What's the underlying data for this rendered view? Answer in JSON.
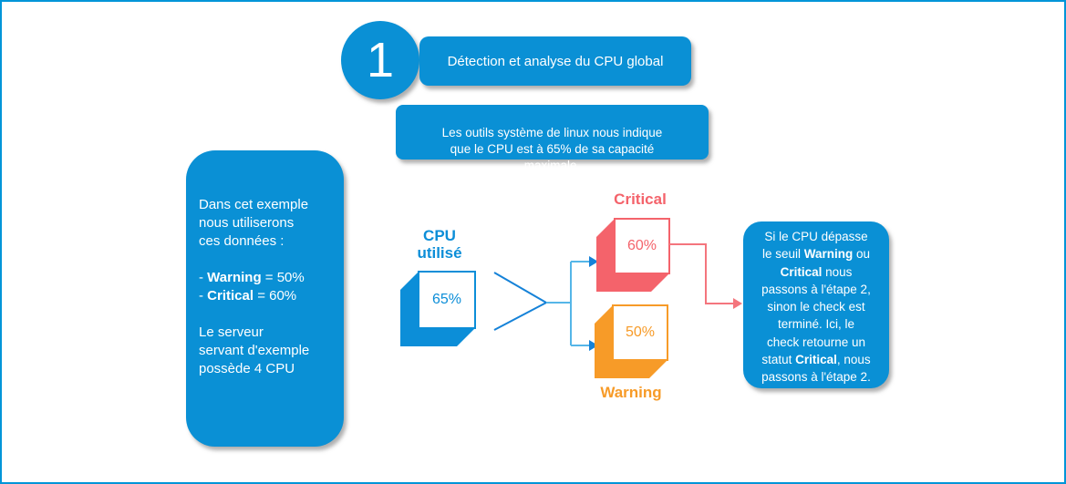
{
  "canvas": {
    "background": "#ffffff",
    "border_color": "#0095d8"
  },
  "colors": {
    "primary_blue": "#0a90d5",
    "diagram_blue": "#0c8ed8",
    "arrow_dark_blue": "#1582d8",
    "arrow_light_blue": "#55b6e8",
    "critical_red": "#f4636b",
    "critical_arrow_red": "#f4757d",
    "warning_orange": "#f79b28",
    "text_white": "#ffffff"
  },
  "step": {
    "number": "1",
    "title": "Détection et analyse du CPU global"
  },
  "subtitle": "Les outils système de linux nous indique\nque le CPU est à 65% de sa capacité\nmaximale.",
  "left_note": {
    "rich": [
      {
        "text": "Dans cet exemple\nnous utiliserons\nces données :\n\n- "
      },
      {
        "text": "Warning",
        "bold": true
      },
      {
        "text": " = 50%\n- "
      },
      {
        "text": "Critical",
        "bold": true
      },
      {
        "text": " = 60%\n\nLe serveur\nservant d'exemple\npossède 4 CPU"
      }
    ]
  },
  "diagram": {
    "cpu": {
      "label": "CPU\nutilisé",
      "value": "65%",
      "color": "#0c8ed8"
    },
    "critical": {
      "label": "Critical",
      "value": "60%",
      "color": "#f4636b"
    },
    "warning": {
      "label": "Warning",
      "value": "50%",
      "color": "#f79b28"
    }
  },
  "right_note": {
    "rich": [
      {
        "text": "Si le CPU dépasse\nle seuil "
      },
      {
        "text": "Warning",
        "bold": true
      },
      {
        "text": " ou\n"
      },
      {
        "text": "Critical",
        "bold": true
      },
      {
        "text": " nous\npassons à l'étape 2,\nsinon le check est\nterminé. Ici, le\ncheck retourne un\nstatut "
      },
      {
        "text": "Critical",
        "bold": true
      },
      {
        "text": ", nous\npassons à l'étape 2."
      }
    ]
  }
}
